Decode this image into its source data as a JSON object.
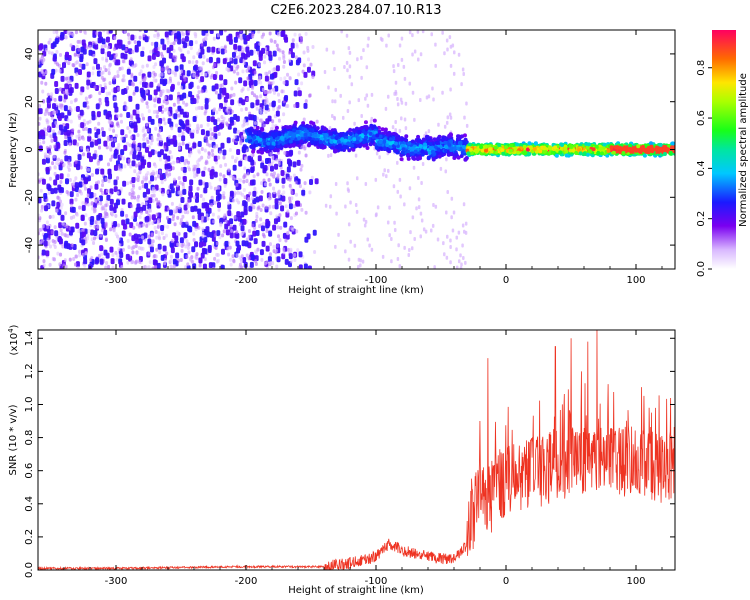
{
  "title": "C2E6.2023.284.07.10.R13",
  "colors": {
    "snr_line": "#ee3322",
    "axis": "#000000",
    "background": "#ffffff"
  },
  "chart_data": [
    {
      "type": "heatmap",
      "panel": "spectrogram",
      "xlabel": "Height of straight line (km)",
      "ylabel": "Frequency (Hz)",
      "xlim": [
        -360,
        130
      ],
      "ylim": [
        -50,
        50
      ],
      "x_ticks": [
        -300,
        -200,
        -100,
        0,
        100
      ],
      "x_tick_labels": [
        "-300",
        "-200",
        "-100",
        "0",
        "100"
      ],
      "y_ticks": [
        -40,
        -20,
        0,
        20,
        40
      ],
      "y_tick_labels": [
        "-40",
        "-20",
        "0",
        "20",
        "40"
      ],
      "colorbar": {
        "label": "Normalized spectral amplitude",
        "range": [
          0.0,
          0.95
        ],
        "ticks": [
          0.0,
          0.2,
          0.4,
          0.6,
          0.8
        ],
        "tick_labels": [
          "0.0",
          "0.2",
          "0.4",
          "0.6",
          "0.8"
        ],
        "colormap": "rainbow (violet → blue → cyan → green → yellow → red)"
      },
      "features": [
        {
          "description": "broadband noise",
          "x_range": [
            -360,
            -140
          ],
          "freq_range": [
            -50,
            50
          ],
          "amplitude_range": [
            0.05,
            0.2
          ]
        },
        {
          "description": "signal band",
          "x_range": [
            -200,
            -30
          ],
          "center_freq": 2,
          "half_width_hz": 6,
          "amplitude_range": [
            0.15,
            0.4
          ]
        },
        {
          "description": "strong signal band",
          "x_range": [
            -30,
            130
          ],
          "center_freq": 0,
          "half_width_hz": 3,
          "amplitude_range": [
            0.3,
            0.95
          ]
        }
      ]
    },
    {
      "type": "line",
      "panel": "snr",
      "xlabel": "Height of straight line (km)",
      "ylabel": "SNR (10 * v/v)",
      "y_multiplier": "(x10",
      "y_multiplier_exp": "4",
      "y_multiplier_close": ")",
      "xlim": [
        -360,
        130
      ],
      "ylim": [
        0,
        1.45
      ],
      "x_ticks": [
        -300,
        -200,
        -100,
        0,
        100
      ],
      "x_tick_labels": [
        "-300",
        "-200",
        "-100",
        "0",
        "100"
      ],
      "y_ticks": [
        0,
        0.2,
        0.4,
        0.6,
        0.8,
        1.0,
        1.2,
        1.4
      ],
      "y_tick_labels": [
        "0.0",
        "0.2",
        "0.4",
        "0.6",
        "0.8",
        "1.0",
        "1.2",
        "1.4"
      ],
      "series": [
        {
          "name": "SNR",
          "x": [
            -360,
            -300,
            -200,
            -140,
            -120,
            -100,
            -90,
            -80,
            -60,
            -40,
            -30,
            -25,
            -20,
            -15,
            -10,
            0,
            10,
            20,
            30,
            40,
            50,
            60,
            70,
            80,
            90,
            100,
            110,
            120,
            130
          ],
          "y": [
            0.01,
            0.01,
            0.02,
            0.02,
            0.04,
            0.08,
            0.16,
            0.12,
            0.08,
            0.06,
            0.15,
            0.35,
            0.5,
            0.4,
            0.45,
            0.55,
            0.55,
            0.6,
            0.6,
            0.65,
            0.65,
            0.68,
            0.7,
            0.68,
            0.66,
            0.66,
            0.65,
            0.62,
            0.65
          ],
          "peaks": [
            [
              -14,
              1.28
            ],
            [
              -20,
              0.9
            ],
            [
              38,
              1.35
            ],
            [
              50,
              1.4
            ],
            [
              70,
              1.45
            ],
            [
              63,
              1.38
            ],
            [
              58,
              1.2
            ],
            [
              110,
              0.98
            ],
            [
              130,
              1.0
            ]
          ]
        }
      ]
    }
  ]
}
